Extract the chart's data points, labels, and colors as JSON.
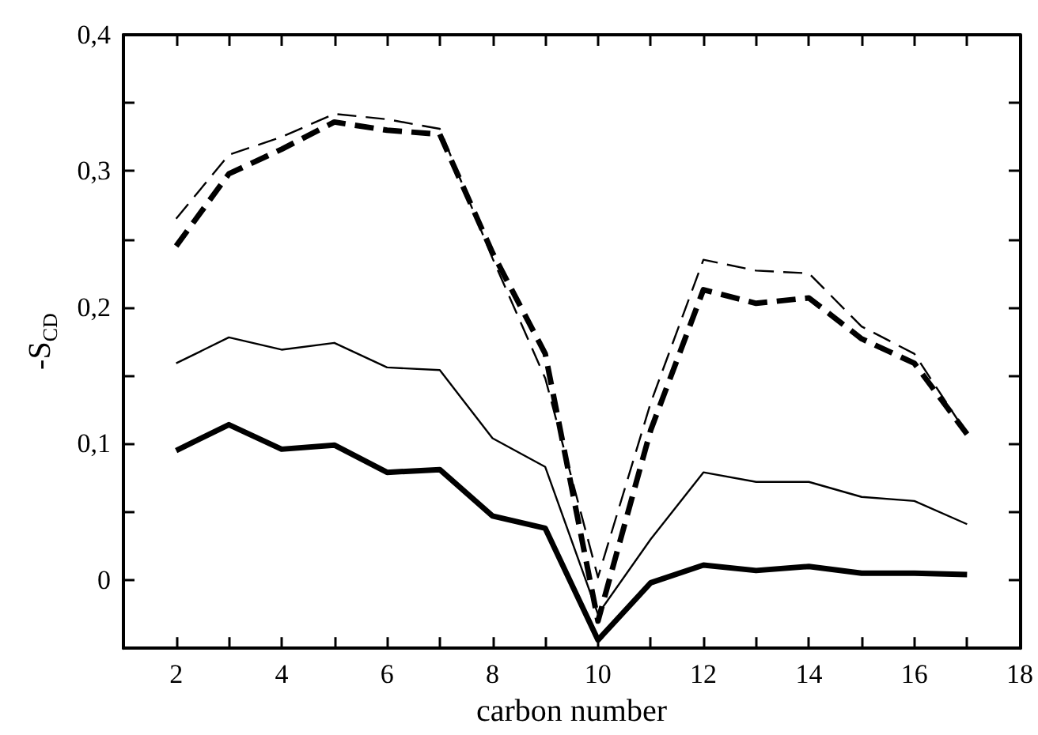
{
  "chart_data": {
    "type": "line",
    "xlabel": "carbon number",
    "ylabel": "-S$_{CD}$",
    "x": [
      2,
      3,
      4,
      5,
      6,
      7,
      8,
      9,
      10,
      11,
      12,
      13,
      14,
      15,
      16,
      17
    ],
    "series": [
      {
        "color": "#000000",
        "line_style": "solid",
        "values": [
          0.095,
          0.114,
          0.096,
          0.099,
          0.079,
          0.081,
          0.047,
          0.038,
          -0.044,
          -0.002,
          0.011,
          0.007,
          0.01,
          0.005,
          0.005,
          0.004
        ]
      },
      {
        "color": "#000000",
        "line_style": "solid",
        "values": [
          0.159,
          0.178,
          0.169,
          0.174,
          0.156,
          0.154,
          0.104,
          0.083,
          -0.025,
          0.03,
          0.079,
          0.072,
          0.072,
          0.061,
          0.058,
          0.041
        ]
      },
      {
        "color": "#000000",
        "line_style": "dashed",
        "values": [
          0.245,
          0.298,
          0.316,
          0.336,
          0.33,
          0.327,
          0.24,
          0.166,
          -0.03,
          0.11,
          0.213,
          0.203,
          0.207,
          0.177,
          0.159,
          0.107
        ]
      },
      {
        "color": "#000000",
        "line_style": "dashed",
        "values": [
          0.265,
          0.312,
          0.325,
          0.342,
          0.338,
          0.331,
          0.236,
          0.148,
          0.002,
          0.13,
          0.235,
          0.227,
          0.225,
          0.186,
          0.166,
          0.107
        ]
      }
    ],
    "xlim": [
      1,
      18
    ],
    "xticks": [
      2,
      {
        "value": 3,
        "label": null
      },
      4,
      {
        "value": 5,
        "label": null
      },
      6,
      {
        "value": 7,
        "label": null
      },
      8,
      {
        "value": 9,
        "label": null
      },
      10,
      {
        "value": 11,
        "label": null
      },
      12,
      {
        "value": 13,
        "label": null
      },
      14,
      {
        "value": 15,
        "label": null
      },
      16,
      {
        "value": 17,
        "label": null
      },
      18
    ],
    "ylim": [
      -0.05,
      0.4
    ],
    "yticks": [
      {
        "value": 0,
        "label": "0"
      },
      {
        "value": 0.05,
        "label": null
      },
      {
        "value": 0.1,
        "label": "0,1"
      },
      {
        "value": 0.15,
        "label": null
      },
      {
        "value": 0.2,
        "label": "0,2"
      },
      {
        "value": 0.25,
        "label": null
      },
      {
        "value": 0.3,
        "label": "0,3"
      },
      {
        "value": 0.35,
        "label": null
      },
      {
        "value": 0.4,
        "label": "0,4"
      }
    ],
    "marker": "none"
  }
}
